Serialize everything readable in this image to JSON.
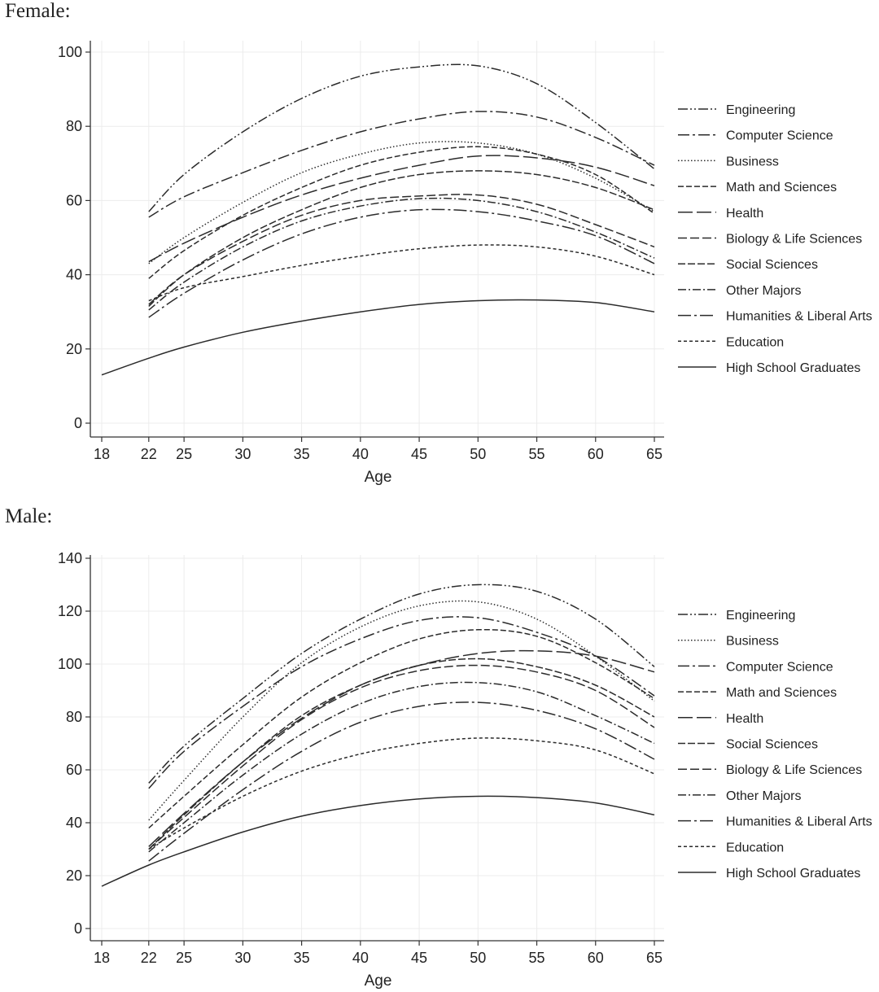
{
  "panels": {
    "female_title": "Female:",
    "male_title": "Male:"
  },
  "chart_data": [
    {
      "type": "line",
      "panel": "Female:",
      "xlabel": "Age",
      "ylabel": "",
      "xlim": [
        18,
        65
      ],
      "ylim": [
        0,
        100
      ],
      "xticks": [
        18,
        22,
        25,
        30,
        35,
        40,
        45,
        50,
        55,
        60,
        65
      ],
      "yticks": [
        0,
        20,
        40,
        60,
        80,
        100
      ],
      "grid": true,
      "legend_position": "right",
      "series": [
        {
          "name": "Engineering",
          "dash": "12 3 2 3 2 3",
          "x": [
            22,
            25,
            30,
            35,
            40,
            45,
            50,
            55,
            60,
            65
          ],
          "y": [
            57,
            67,
            78.5,
            87.5,
            93.5,
            96,
            96.3,
            91.5,
            81,
            68.5
          ]
        },
        {
          "name": "Computer Science",
          "dash": "14 4 3 4",
          "x": [
            22,
            25,
            30,
            35,
            40,
            45,
            50,
            55,
            60,
            65
          ],
          "y": [
            55.5,
            61,
            67.5,
            73.5,
            78.5,
            82,
            84,
            82.5,
            77,
            69.5
          ]
        },
        {
          "name": "Business",
          "dash": "1.5 2.5",
          "x": [
            22,
            25,
            30,
            35,
            40,
            45,
            50,
            55,
            60,
            65
          ],
          "y": [
            43,
            50,
            59.5,
            67.5,
            72.5,
            75.5,
            75.5,
            72.5,
            66,
            57
          ]
        },
        {
          "name": "Math and Sciences",
          "dash": "7 3",
          "x": [
            22,
            25,
            30,
            35,
            40,
            45,
            50,
            55,
            60,
            65
          ],
          "y": [
            39,
            46.5,
            56,
            63.5,
            69.5,
            73,
            74.5,
            72.5,
            67,
            56.5
          ]
        },
        {
          "name": "Health",
          "dash": "18 5",
          "x": [
            22,
            25,
            30,
            35,
            40,
            45,
            50,
            55,
            60,
            65
          ],
          "y": [
            43.5,
            48.5,
            55.5,
            61.5,
            66,
            69.5,
            72,
            71.5,
            69,
            64
          ]
        },
        {
          "name": "Biology & Life Sciences",
          "dash": "11 4",
          "x": [
            22,
            25,
            30,
            35,
            40,
            45,
            50,
            55,
            60,
            65
          ],
          "y": [
            32,
            40,
            49,
            56,
            60,
            61.2,
            61.5,
            59,
            53.5,
            47.5
          ]
        },
        {
          "name": "Social Sciences",
          "dash": "9 3",
          "x": [
            22,
            25,
            30,
            35,
            40,
            45,
            50,
            55,
            60,
            65
          ],
          "y": [
            31.5,
            40,
            50,
            57.5,
            63.5,
            67,
            68,
            67,
            63.5,
            57.5
          ]
        },
        {
          "name": "Other Majors",
          "dash": "10 3 2 3",
          "x": [
            22,
            25,
            30,
            35,
            40,
            45,
            50,
            55,
            60,
            65
          ],
          "y": [
            30.5,
            38,
            47.5,
            54.5,
            58.5,
            60.5,
            60,
            57,
            51.5,
            44.5
          ]
        },
        {
          "name": "Humanities & Liberal Arts",
          "dash": "16 4 3 4",
          "x": [
            22,
            25,
            30,
            35,
            40,
            45,
            50,
            55,
            60,
            65
          ],
          "y": [
            28.5,
            35,
            44,
            51,
            55.5,
            57.5,
            57,
            54.5,
            50.5,
            43
          ]
        },
        {
          "name": "Education",
          "dash": "4 3",
          "x": [
            22,
            25,
            30,
            35,
            40,
            45,
            50,
            55,
            60,
            65
          ],
          "y": [
            33,
            36.5,
            39.5,
            42.5,
            45,
            47,
            48,
            47.5,
            45,
            40
          ]
        },
        {
          "name": "High School Graduates",
          "dash": "",
          "x": [
            18,
            22,
            25,
            30,
            35,
            40,
            45,
            50,
            55,
            60,
            65
          ],
          "y": [
            13,
            17.5,
            20.5,
            24.5,
            27.5,
            30,
            32,
            33,
            33.2,
            32.5,
            30
          ]
        }
      ]
    },
    {
      "type": "line",
      "panel": "Male:",
      "xlabel": "Age",
      "ylabel": "",
      "xlim": [
        18,
        65
      ],
      "ylim": [
        0,
        140
      ],
      "xticks": [
        18,
        22,
        25,
        30,
        35,
        40,
        45,
        50,
        55,
        60,
        65
      ],
      "yticks": [
        0,
        20,
        40,
        60,
        80,
        100,
        120,
        140
      ],
      "grid": true,
      "legend_position": "right",
      "series": [
        {
          "name": "Engineering",
          "dash": "12 3 2 3 2 3",
          "x": [
            22,
            25,
            30,
            35,
            40,
            45,
            50,
            55,
            60,
            65
          ],
          "y": [
            55,
            69,
            87,
            104,
            117,
            126.5,
            130,
            127.5,
            117,
            99
          ]
        },
        {
          "name": "Business",
          "dash": "1.5 2.5",
          "x": [
            22,
            25,
            30,
            35,
            40,
            45,
            50,
            55,
            60,
            65
          ],
          "y": [
            41,
            56,
            80,
            100.5,
            114,
            122,
            123.5,
            117,
            103,
            86
          ]
        },
        {
          "name": "Computer Science",
          "dash": "14 4 3 4",
          "x": [
            22,
            25,
            30,
            35,
            40,
            45,
            50,
            55,
            60,
            65
          ],
          "y": [
            53,
            67,
            84,
            99,
            109.5,
            116.5,
            117.5,
            112,
            103,
            88
          ]
        },
        {
          "name": "Math and Sciences",
          "dash": "7 3",
          "x": [
            22,
            25,
            30,
            35,
            40,
            45,
            50,
            55,
            60,
            65
          ],
          "y": [
            38,
            50,
            69.5,
            87.5,
            100.5,
            109.5,
            113,
            110.5,
            100.5,
            87
          ]
        },
        {
          "name": "Health",
          "dash": "18 5",
          "x": [
            22,
            25,
            30,
            35,
            40,
            45,
            50,
            55,
            60,
            65
          ],
          "y": [
            31,
            43.5,
            63,
            79.5,
            92,
            99.5,
            104,
            105,
            103,
            97
          ]
        },
        {
          "name": "Social Sciences",
          "dash": "9 3",
          "x": [
            22,
            25,
            30,
            35,
            40,
            45,
            50,
            55,
            60,
            65
          ],
          "y": [
            30,
            43,
            63,
            80.5,
            92,
            99.5,
            102,
            99,
            92,
            80
          ]
        },
        {
          "name": "Biology & Life Sciences",
          "dash": "11 4",
          "x": [
            22,
            25,
            30,
            35,
            40,
            45,
            50,
            55,
            60,
            65
          ],
          "y": [
            30,
            42,
            61.5,
            79,
            91,
            97.5,
            99.5,
            97,
            90,
            76
          ]
        },
        {
          "name": "Other Majors",
          "dash": "10 3 2 3",
          "x": [
            22,
            25,
            30,
            35,
            40,
            45,
            50,
            55,
            60,
            65
          ],
          "y": [
            29,
            40,
            58,
            73.5,
            85,
            91.5,
            93,
            89.5,
            80.5,
            70
          ]
        },
        {
          "name": "Humanities & Liberal Arts",
          "dash": "16 4 3 4",
          "x": [
            22,
            25,
            30,
            35,
            40,
            45,
            50,
            55,
            60,
            65
          ],
          "y": [
            25.5,
            36,
            52.5,
            67,
            78,
            84,
            85.5,
            82.5,
            75.5,
            64
          ]
        },
        {
          "name": "Education",
          "dash": "4 3",
          "x": [
            22,
            25,
            30,
            35,
            40,
            45,
            50,
            55,
            60,
            65
          ],
          "y": [
            30,
            38,
            50,
            59.5,
            66,
            70,
            72,
            71,
            67.5,
            58.5
          ]
        },
        {
          "name": "High School Graduates",
          "dash": "",
          "x": [
            18,
            22,
            25,
            30,
            35,
            40,
            45,
            50,
            55,
            60,
            65
          ],
          "y": [
            16,
            24,
            29,
            36.5,
            42.5,
            46.5,
            49,
            50,
            49.5,
            47.5,
            43
          ]
        }
      ]
    }
  ]
}
